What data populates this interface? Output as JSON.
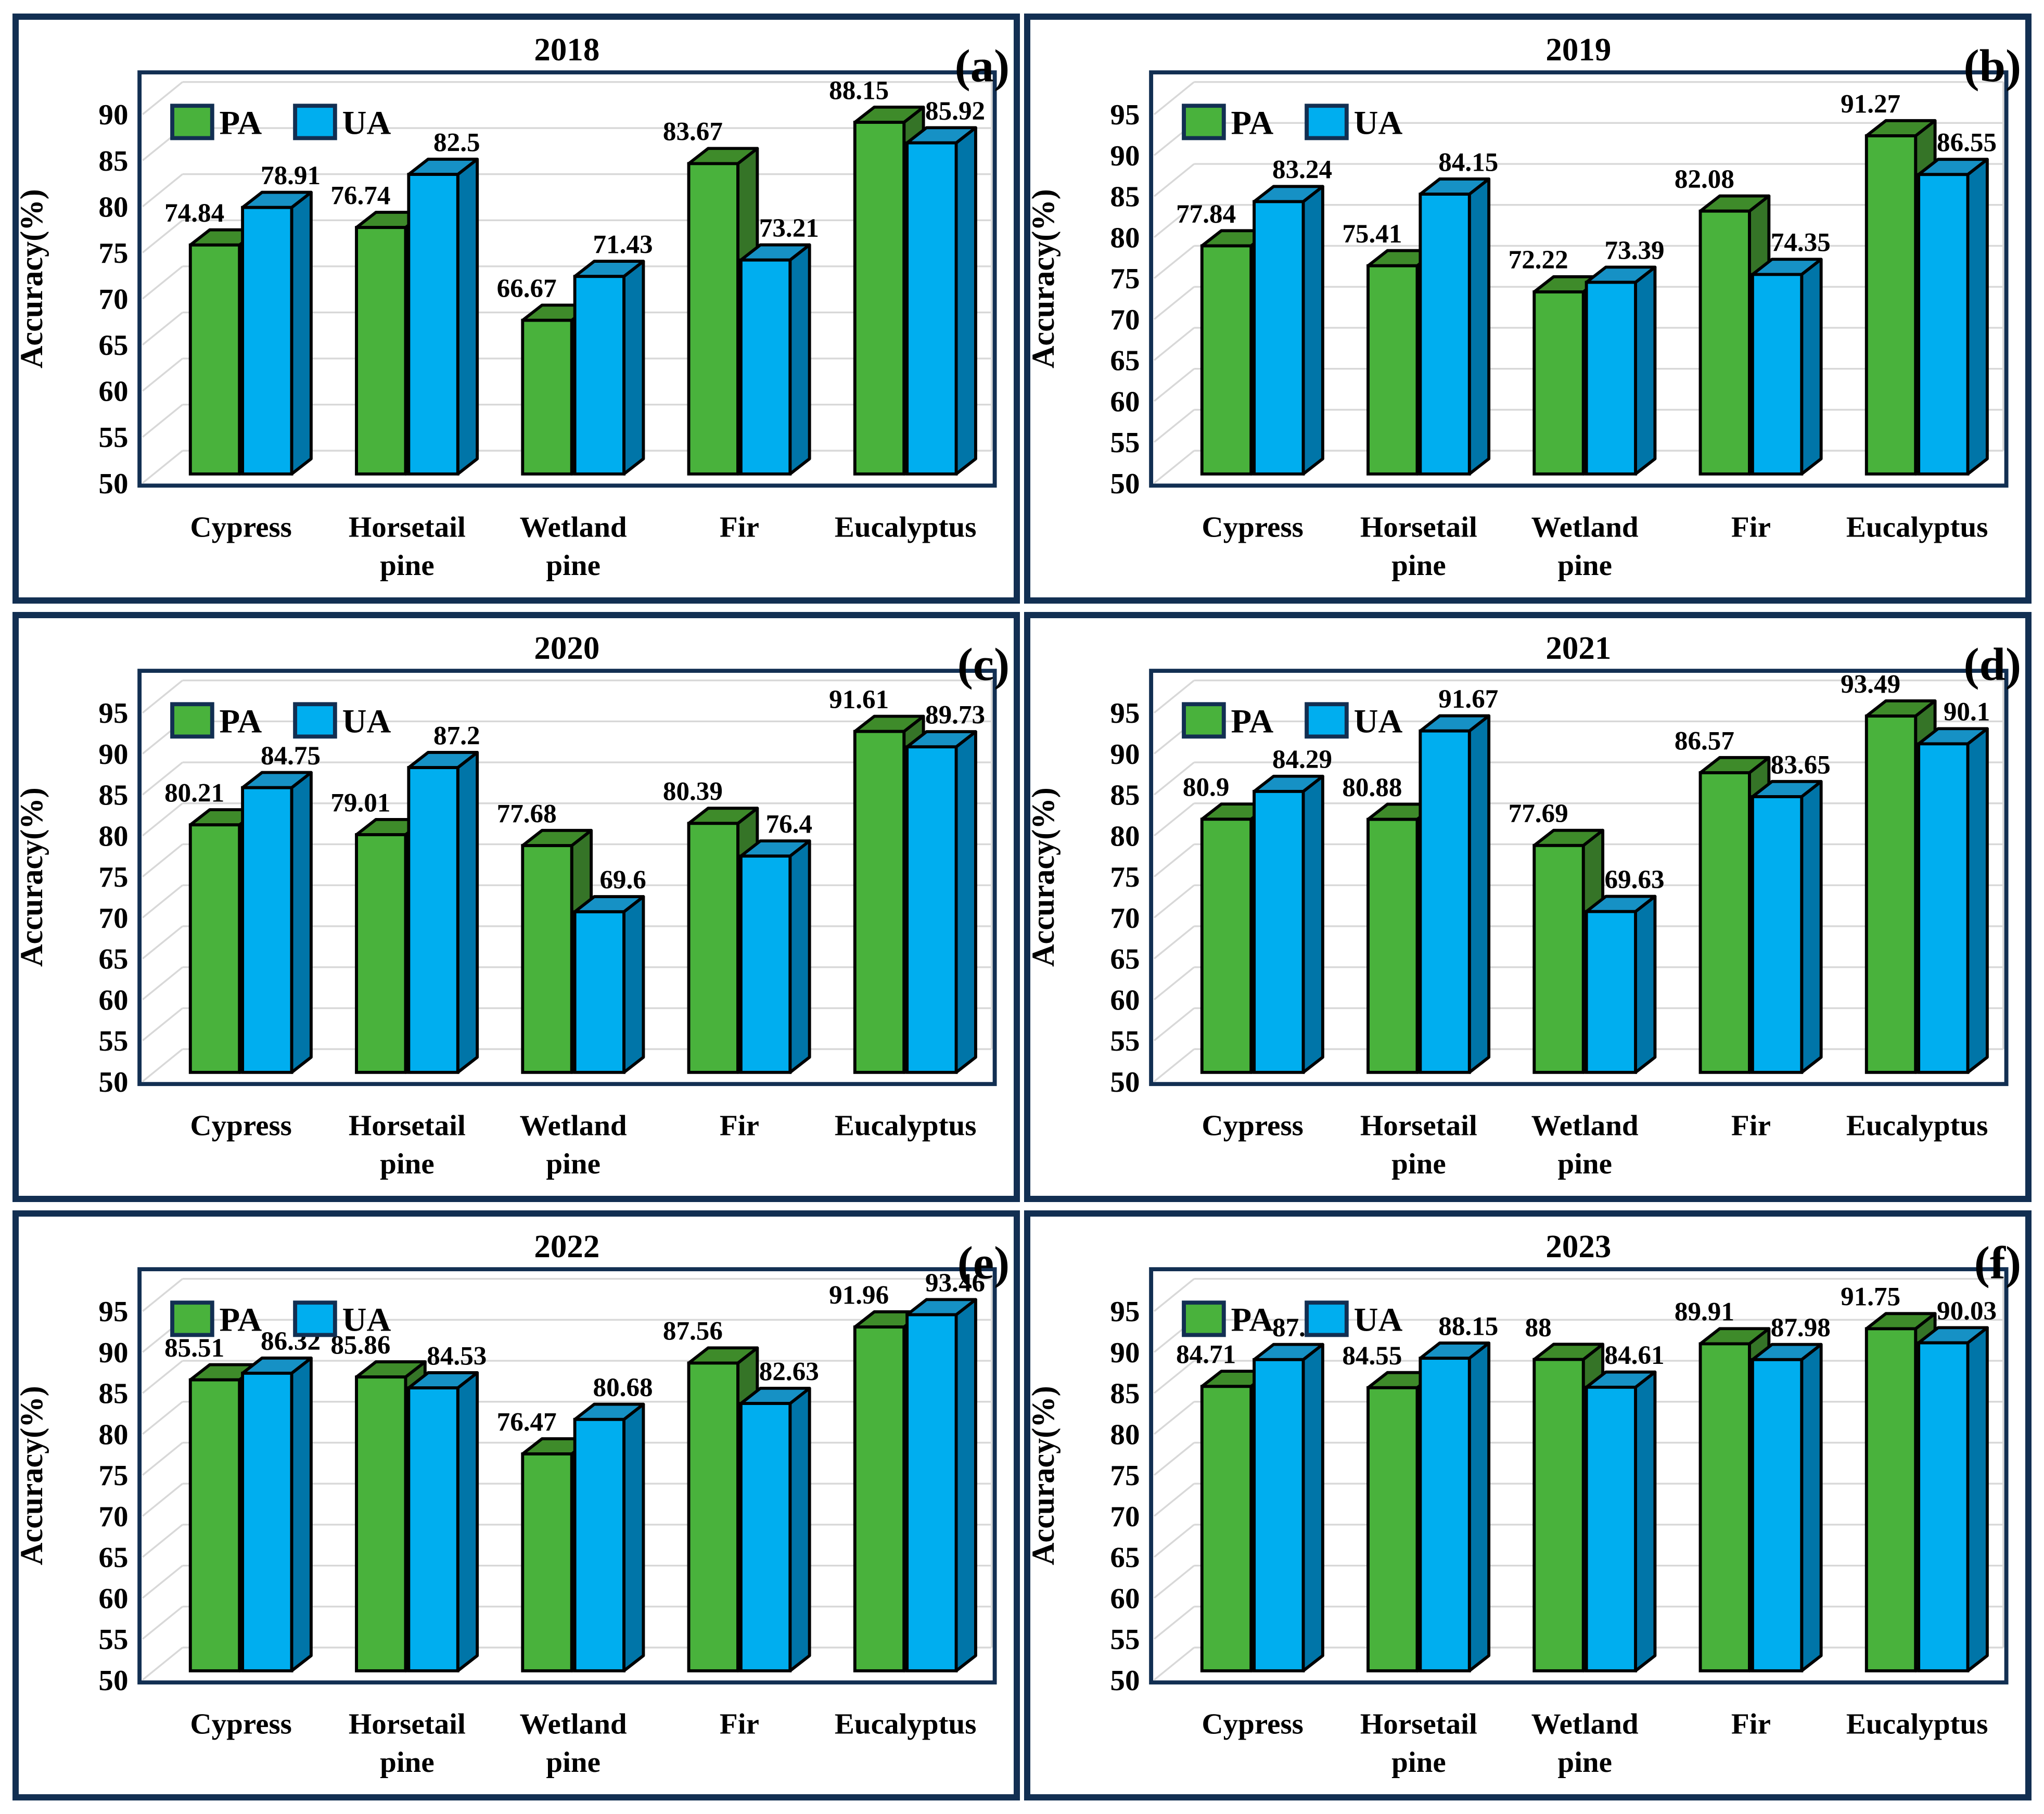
{
  "figure": {
    "y_axis_title": "Accuracy(%)",
    "legend": [
      "PA",
      "UA"
    ],
    "categories": [
      "Cypress",
      "Horsetail pine",
      "Wetland pine",
      "Fir",
      "Eucalyptus"
    ],
    "colors": {
      "panel_border": "#122F52",
      "pa_front": "#49B23C",
      "pa_top": "#3E8B2A",
      "pa_side": "#357427",
      "ua_front": "#00AEEF",
      "ua_top": "#1691C5",
      "ua_side": "#0075A8",
      "gridline": "#D8D8D8",
      "bar_outline": "#000000",
      "text": "#000000"
    }
  },
  "chart_data": [
    {
      "type": "bar",
      "panel_label": "(a)",
      "title": "2018",
      "xlabel": "",
      "ylabel": "Accuracy(%)",
      "ylim": [
        50,
        90
      ],
      "ytick_step": 5,
      "grid": true,
      "legend_position": "top-left",
      "categories": [
        "Cypress",
        "Horsetail pine",
        "Wetland pine",
        "Fir",
        "Eucalyptus"
      ],
      "series": [
        {
          "name": "PA",
          "values": [
            74.84,
            76.74,
            66.67,
            83.67,
            88.15
          ]
        },
        {
          "name": "UA",
          "values": [
            78.91,
            82.5,
            71.43,
            73.21,
            85.92
          ]
        }
      ]
    },
    {
      "type": "bar",
      "panel_label": "(b)",
      "title": "2019",
      "xlabel": "",
      "ylabel": "Accuracy(%)",
      "ylim": [
        50,
        95
      ],
      "ytick_step": 5,
      "grid": true,
      "legend_position": "top-left",
      "categories": [
        "Cypress",
        "Horsetail pine",
        "Wetland pine",
        "Fir",
        "Eucalyptus"
      ],
      "series": [
        {
          "name": "PA",
          "values": [
            77.84,
            75.41,
            72.22,
            82.08,
            91.27
          ]
        },
        {
          "name": "UA",
          "values": [
            83.24,
            84.15,
            73.39,
            74.35,
            86.55
          ]
        }
      ]
    },
    {
      "type": "bar",
      "panel_label": "(c)",
      "title": "2020",
      "xlabel": "",
      "ylabel": "Accuracy(%)",
      "ylim": [
        50,
        95
      ],
      "ytick_step": 5,
      "grid": true,
      "legend_position": "top-left",
      "categories": [
        "Cypress",
        "Horsetail pine",
        "Wetland pine",
        "Fir",
        "Eucalyptus"
      ],
      "series": [
        {
          "name": "PA",
          "values": [
            80.21,
            79.01,
            77.68,
            80.39,
            91.61
          ]
        },
        {
          "name": "UA",
          "values": [
            84.75,
            87.2,
            69.6,
            76.4,
            89.73
          ]
        }
      ]
    },
    {
      "type": "bar",
      "panel_label": "(d)",
      "title": "2021",
      "xlabel": "",
      "ylabel": "Accuracy(%)",
      "ylim": [
        50,
        95
      ],
      "ytick_step": 5,
      "grid": true,
      "legend_position": "top-left",
      "categories": [
        "Cypress",
        "Horsetail pine",
        "Wetland pine",
        "Fir",
        "Eucalyptus"
      ],
      "series": [
        {
          "name": "PA",
          "values": [
            80.9,
            80.88,
            77.69,
            86.57,
            93.49
          ]
        },
        {
          "name": "UA",
          "values": [
            84.29,
            91.67,
            69.63,
            83.65,
            90.1
          ]
        }
      ]
    },
    {
      "type": "bar",
      "panel_label": "(e)",
      "title": "2022",
      "xlabel": "",
      "ylabel": "Accuracy(%)",
      "ylim": [
        50,
        95
      ],
      "ytick_step": 5,
      "grid": true,
      "legend_position": "top-left",
      "categories": [
        "Cypress",
        "Horsetail pine",
        "Wetland pine",
        "Fir",
        "Eucalyptus"
      ],
      "series": [
        {
          "name": "PA",
          "values": [
            85.51,
            85.86,
            76.47,
            87.56,
            91.96
          ]
        },
        {
          "name": "UA",
          "values": [
            86.32,
            84.53,
            80.68,
            82.63,
            93.46
          ]
        }
      ]
    },
    {
      "type": "bar",
      "panel_label": "(f)",
      "title": "2023",
      "xlabel": "",
      "ylabel": "Accuracy(%)",
      "ylim": [
        50,
        95
      ],
      "ytick_step": 5,
      "grid": true,
      "legend_position": "top-left",
      "categories": [
        "Cypress",
        "Horsetail pine",
        "Wetland pine",
        "Fir",
        "Eucalyptus"
      ],
      "series": [
        {
          "name": "PA",
          "values": [
            84.71,
            84.55,
            88,
            89.91,
            91.75
          ]
        },
        {
          "name": "UA",
          "values": [
            87.98,
            88.15,
            84.61,
            87.98,
            90.03
          ]
        }
      ]
    }
  ]
}
